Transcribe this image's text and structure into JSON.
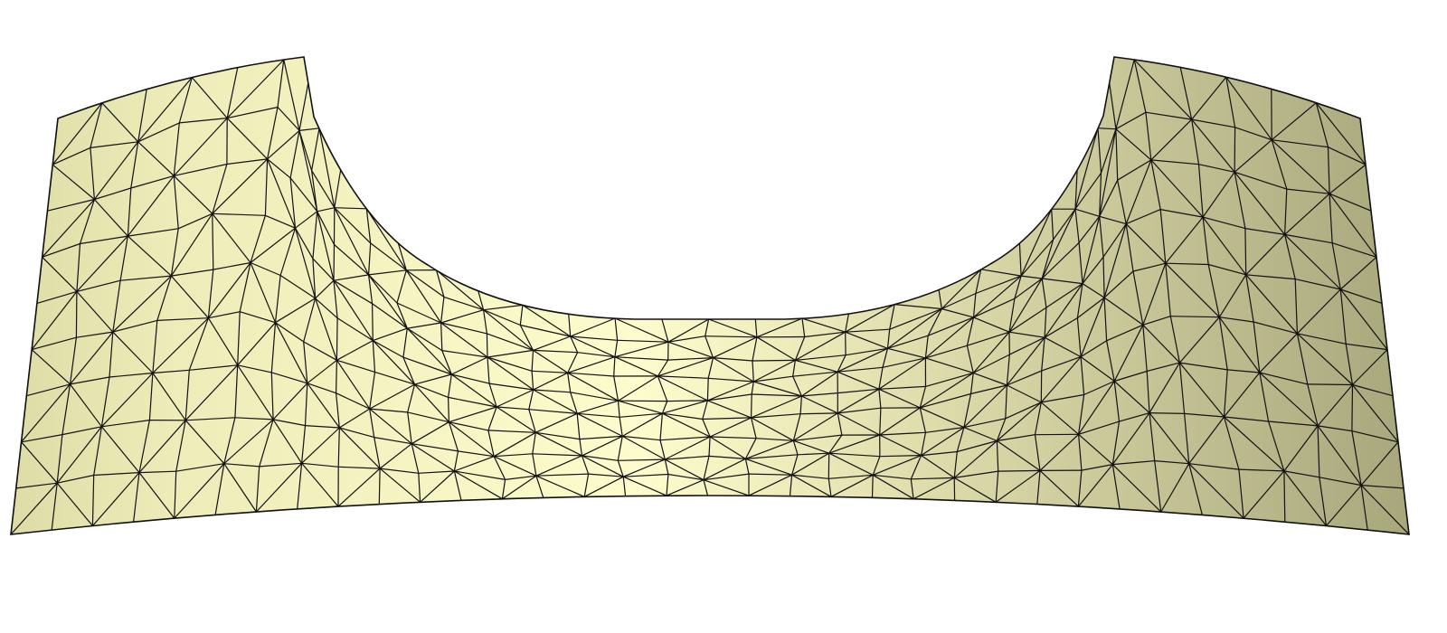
{
  "figure": {
    "description_free": true,
    "mesh_type": "triangular",
    "colors": {
      "fill_light": "#fdfccc",
      "fill_dark": "#a8a77c",
      "edge": "#111111",
      "background": "#ffffff"
    }
  }
}
